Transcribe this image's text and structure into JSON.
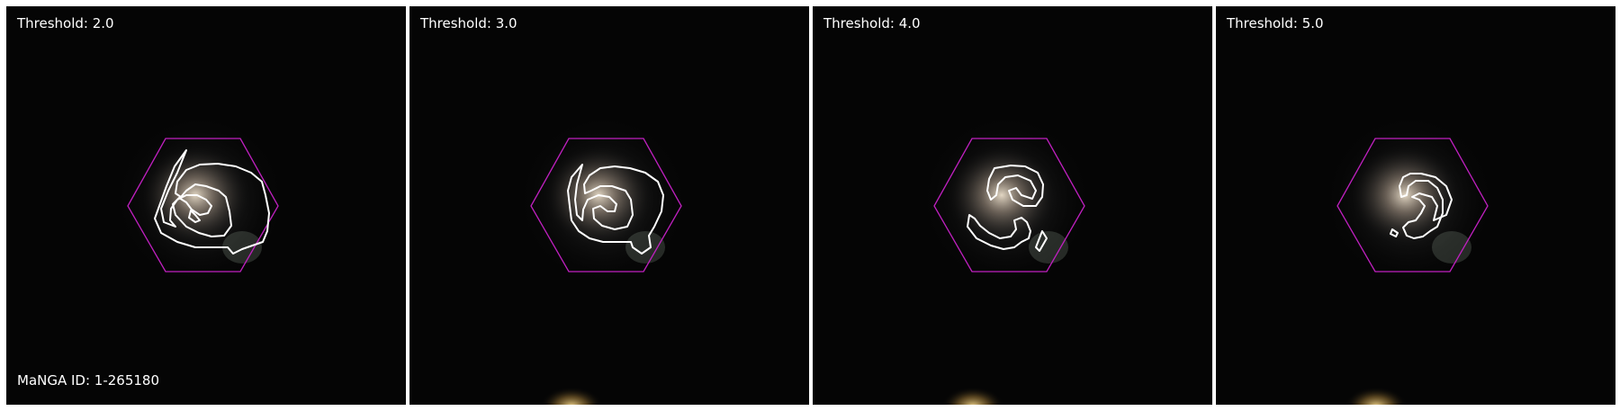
{
  "figure": {
    "manga_id_label": "MaNGA ID: 1-265180",
    "colors": {
      "background": "#ffffff",
      "sky": "#050505",
      "hexagon": "#c020c0",
      "contour": "#ffffff",
      "label_text": "#ffffff"
    },
    "panels": [
      {
        "threshold_label": "Threshold: 2.0"
      },
      {
        "threshold_label": "Threshold: 3.0"
      },
      {
        "threshold_label": "Threshold: 4.0"
      },
      {
        "threshold_label": "Threshold: 5.0"
      }
    ]
  }
}
